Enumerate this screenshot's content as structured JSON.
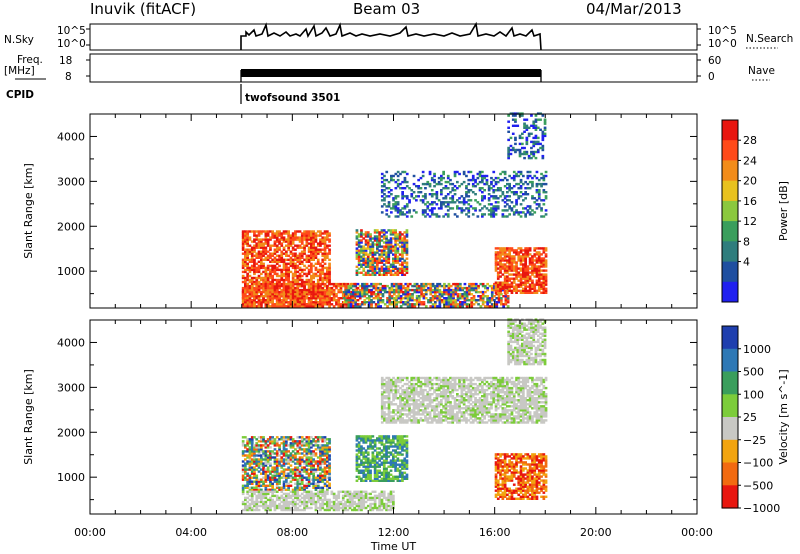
{
  "header": {
    "station": "Inuvik (fitACF)",
    "beam": "Beam 03",
    "date": "04/Mar/2013"
  },
  "params": {
    "nsky_label": "N.Sky",
    "nsky_ticks": [
      "10^5",
      "10^0"
    ],
    "nsky_right_ticks": [
      "10^5",
      "10^0"
    ],
    "nsearch_label": "N.Search",
    "freq_label_1": "Freq.",
    "freq_label_2": "[MHz]",
    "freq_ticks": [
      "18",
      "8"
    ],
    "nave_ticks": [
      "60",
      "0"
    ],
    "nave_label": "Nave",
    "cpid_label": "CPID",
    "cpid_value": "twofsound 3501"
  },
  "chart_data": [
    {
      "type": "heatmap",
      "title": "",
      "xlabel": "Time UT",
      "ylabel": "Slant Range [km]",
      "x_ticks": [
        "00:00",
        "04:00",
        "08:00",
        "12:00",
        "16:00",
        "20:00",
        "00:00"
      ],
      "y_ticks": [
        1000,
        2000,
        3000,
        4000
      ],
      "xlim_hours": [
        0,
        24
      ],
      "ylim_km": [
        180,
        4500
      ],
      "colorbar": {
        "label": "Power [dB]",
        "ticks": [
          "28",
          "24",
          "20",
          "16",
          "12",
          "8",
          "4"
        ],
        "colors_high_to_low": [
          "#e8160f",
          "#ff4a1a",
          "#f28c1a",
          "#e8c21f",
          "#8bc83e",
          "#3a9e5c",
          "#2f7d7d",
          "#1f4fa0",
          "#2020f0"
        ]
      },
      "regions": [
        {
          "t": [
            6.0,
            9.5
          ],
          "r": [
            200,
            1900
          ],
          "level": "high"
        },
        {
          "t": [
            6.0,
            10.5
          ],
          "r": [
            200,
            700
          ],
          "level": "high"
        },
        {
          "t": [
            10.5,
            12.5
          ],
          "r": [
            900,
            1900
          ],
          "level": "mixed"
        },
        {
          "t": [
            10.0,
            16.5
          ],
          "r": [
            200,
            700
          ],
          "level": "mixed"
        },
        {
          "t": [
            16.0,
            18.0
          ],
          "r": [
            500,
            1500
          ],
          "level": "high"
        },
        {
          "t": [
            11.5,
            18.0
          ],
          "r": [
            2200,
            3200
          ],
          "level": "low"
        },
        {
          "t": [
            16.5,
            18.0
          ],
          "r": [
            3500,
            4500
          ],
          "level": "low"
        }
      ]
    },
    {
      "type": "heatmap",
      "title": "",
      "xlabel": "Time UT",
      "ylabel": "Slant Range [km]",
      "x_ticks": [
        "00:00",
        "04:00",
        "08:00",
        "12:00",
        "16:00",
        "20:00",
        "00:00"
      ],
      "y_ticks": [
        1000,
        2000,
        3000,
        4000
      ],
      "xlim_hours": [
        0,
        24
      ],
      "ylim_km": [
        180,
        4500
      ],
      "colorbar": {
        "label": "Velocity [m s^-1]",
        "ticks": [
          "1000",
          "500",
          "100",
          "25",
          "−25",
          "−100",
          "−500",
          "−1000"
        ],
        "colors_high_to_low": [
          "#1f3fae",
          "#2e78b5",
          "#3a9e5c",
          "#7ccc3a",
          "#c8c8c4",
          "#f2a40f",
          "#f26a10",
          "#e8160f"
        ]
      },
      "regions": [
        {
          "t": [
            6.0,
            9.5
          ],
          "r": [
            700,
            1900
          ],
          "level": "mixed"
        },
        {
          "t": [
            6.0,
            12.0
          ],
          "r": [
            250,
            700
          ],
          "level": "near-zero"
        },
        {
          "t": [
            10.5,
            12.5
          ],
          "r": [
            900,
            1900
          ],
          "level": "positive"
        },
        {
          "t": [
            16.0,
            18.0
          ],
          "r": [
            500,
            1500
          ],
          "level": "negative"
        },
        {
          "t": [
            11.5,
            18.0
          ],
          "r": [
            2200,
            3200
          ],
          "level": "near-zero"
        },
        {
          "t": [
            16.5,
            18.0
          ],
          "r": [
            3500,
            4500
          ],
          "level": "near-zero"
        }
      ]
    }
  ]
}
